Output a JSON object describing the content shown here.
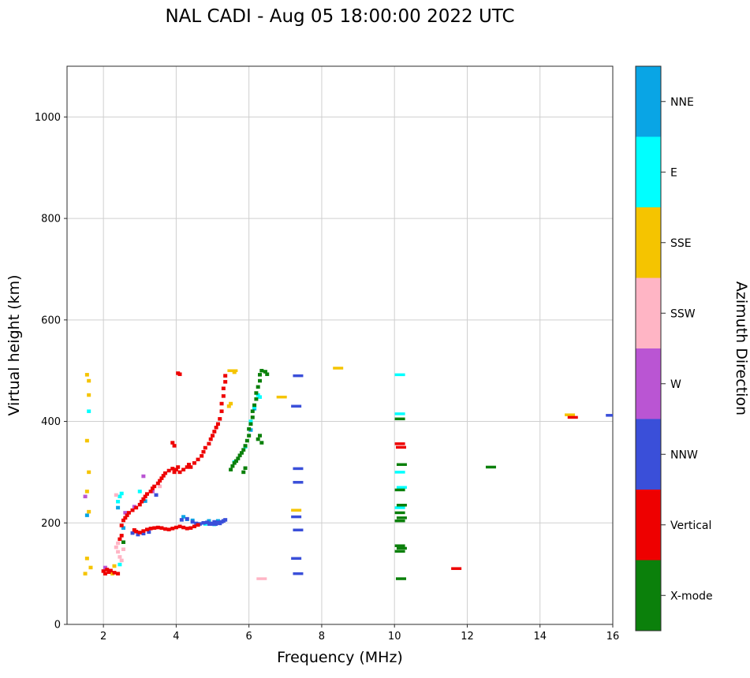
{
  "chart_data": {
    "type": "scatter",
    "title": "NAL CADI - Aug 05 18:00:00 2022 UTC",
    "xlabel": "Frequency (MHz)",
    "ylabel": "Virtual height (km)",
    "xlim": [
      1,
      16
    ],
    "ylim": [
      0,
      1100
    ],
    "xticks": [
      2,
      4,
      6,
      8,
      10,
      12,
      14,
      16
    ],
    "yticks": [
      0,
      200,
      400,
      600,
      800,
      1000
    ],
    "grid": true,
    "legend_position": "right-colorbar",
    "colorbar": {
      "label": "Azimuth Direction",
      "segments": [
        {
          "label": "NNE",
          "color": "#09A5E5"
        },
        {
          "label": "E",
          "color": "#00FFFF"
        },
        {
          "label": "SSE",
          "color": "#F5C400"
        },
        {
          "label": "SSW",
          "color": "#FFB5C5"
        },
        {
          "label": "W",
          "color": "#BA55D3"
        },
        {
          "label": "NNW",
          "color": "#3A4FD9"
        },
        {
          "label": "Vertical",
          "color": "#EE0000"
        },
        {
          "label": "X-mode",
          "color": "#0B800B"
        }
      ]
    },
    "marker_note": "points are [frequency_MHz, virtual_height_km] squares; third element 1 marks a wide horizontal dash",
    "series": [
      {
        "name": "NNE",
        "color": "#09A5E5",
        "points": [
          [
            4.2,
            212
          ],
          [
            4.3,
            207
          ],
          [
            4.45,
            205
          ],
          [
            4.9,
            204
          ],
          [
            5.15,
            204
          ],
          [
            2.55,
            190
          ],
          [
            2.4,
            230
          ],
          [
            3.15,
            243
          ],
          [
            6.05,
            383
          ],
          [
            6.15,
            425
          ],
          [
            1.55,
            215
          ]
        ]
      },
      {
        "name": "E",
        "color": "#00FFFF",
        "points": [
          [
            2.4,
            242
          ],
          [
            2.45,
            252
          ],
          [
            2.5,
            258
          ],
          [
            2.45,
            118
          ],
          [
            1.6,
            420
          ],
          [
            3.0,
            262
          ],
          [
            5.6,
            320
          ],
          [
            5.9,
            350
          ],
          [
            6.05,
            400
          ],
          [
            6.15,
            428
          ],
          [
            6.25,
            452
          ],
          [
            6.3,
            448
          ],
          [
            4.8,
            198
          ],
          [
            5.05,
            197
          ],
          [
            10.15,
            492,
            1
          ],
          [
            10.15,
            415,
            1
          ],
          [
            10.15,
            300,
            1
          ],
          [
            10.2,
            270,
            1
          ],
          [
            10.15,
            230,
            1
          ]
        ]
      },
      {
        "name": "SSE",
        "color": "#F5C400",
        "points": [
          [
            1.55,
            492
          ],
          [
            1.6,
            480
          ],
          [
            1.6,
            452
          ],
          [
            1.55,
            362
          ],
          [
            1.6,
            300
          ],
          [
            1.55,
            262
          ],
          [
            1.6,
            222
          ],
          [
            1.55,
            130
          ],
          [
            1.65,
            112
          ],
          [
            1.5,
            100
          ],
          [
            2.3,
            115
          ],
          [
            2.25,
            100
          ],
          [
            5.55,
            500,
            1
          ],
          [
            5.6,
            497
          ],
          [
            5.5,
            435
          ],
          [
            5.45,
            430
          ],
          [
            6.9,
            448,
            1
          ],
          [
            7.3,
            225,
            1
          ],
          [
            8.45,
            505,
            1
          ],
          [
            14.82,
            413,
            1
          ]
        ]
      },
      {
        "name": "SSW",
        "color": "#FFB5C5",
        "points": [
          [
            2.35,
            152
          ],
          [
            2.4,
            143
          ],
          [
            2.45,
            133
          ],
          [
            2.5,
            126
          ],
          [
            2.4,
            160
          ],
          [
            2.55,
            148
          ],
          [
            2.35,
            255
          ],
          [
            3.55,
            272
          ],
          [
            6.35,
            90,
            1
          ]
        ]
      },
      {
        "name": "W",
        "color": "#BA55D3",
        "points": [
          [
            1.5,
            252
          ],
          [
            2.05,
            112
          ],
          [
            3.1,
            292
          ],
          [
            3.35,
            262
          ],
          [
            2.85,
            232
          ],
          [
            2.6,
            220
          ]
        ]
      },
      {
        "name": "NNW",
        "color": "#3A4FD9",
        "points": [
          [
            2.8,
            180
          ],
          [
            2.95,
            177
          ],
          [
            3.1,
            179
          ],
          [
            3.25,
            182
          ],
          [
            3.45,
            255
          ],
          [
            4.15,
            206
          ],
          [
            4.3,
            208
          ],
          [
            4.45,
            202
          ],
          [
            4.55,
            199
          ],
          [
            4.65,
            198
          ],
          [
            4.75,
            200
          ],
          [
            4.85,
            201
          ],
          [
            4.95,
            199
          ],
          [
            5.0,
            197,
            1
          ],
          [
            5.05,
            202
          ],
          [
            5.1,
            200
          ],
          [
            5.15,
            201
          ],
          [
            5.2,
            199
          ],
          [
            5.25,
            202
          ],
          [
            5.3,
            204
          ],
          [
            5.35,
            206
          ],
          [
            7.35,
            490,
            1
          ],
          [
            7.3,
            430,
            1
          ],
          [
            7.35,
            307,
            1
          ],
          [
            7.35,
            280,
            1
          ],
          [
            7.3,
            212,
            1
          ],
          [
            7.35,
            186,
            1
          ],
          [
            7.3,
            130,
            1
          ],
          [
            7.35,
            100,
            1
          ],
          [
            15.95,
            412,
            1
          ]
        ]
      },
      {
        "name": "Vertical",
        "color": "#EE0000",
        "points": [
          [
            2.0,
            105
          ],
          [
            2.05,
            100
          ],
          [
            2.1,
            108
          ],
          [
            2.15,
            103
          ],
          [
            2.2,
            106
          ],
          [
            2.3,
            102
          ],
          [
            2.4,
            100
          ],
          [
            2.45,
            168
          ],
          [
            2.5,
            175
          ],
          [
            2.5,
            195
          ],
          [
            2.85,
            186
          ],
          [
            2.9,
            183
          ],
          [
            3.0,
            181
          ],
          [
            3.1,
            184
          ],
          [
            3.2,
            187
          ],
          [
            3.3,
            189
          ],
          [
            3.4,
            190
          ],
          [
            3.5,
            191
          ],
          [
            3.6,
            190
          ],
          [
            3.7,
            188
          ],
          [
            3.8,
            187
          ],
          [
            3.9,
            189
          ],
          [
            4.0,
            191
          ],
          [
            4.1,
            193
          ],
          [
            4.2,
            191
          ],
          [
            4.3,
            189
          ],
          [
            4.4,
            190
          ],
          [
            4.5,
            193
          ],
          [
            4.6,
            196
          ],
          [
            2.55,
            205
          ],
          [
            2.6,
            210
          ],
          [
            2.65,
            215
          ],
          [
            2.7,
            220
          ],
          [
            2.8,
            225
          ],
          [
            2.9,
            230
          ],
          [
            3.0,
            236
          ],
          [
            3.05,
            242
          ],
          [
            3.1,
            247
          ],
          [
            3.15,
            252
          ],
          [
            3.2,
            257
          ],
          [
            3.3,
            262
          ],
          [
            3.35,
            268
          ],
          [
            3.4,
            272
          ],
          [
            3.5,
            278
          ],
          [
            3.55,
            283
          ],
          [
            3.6,
            288
          ],
          [
            3.65,
            293
          ],
          [
            3.7,
            298
          ],
          [
            3.8,
            303
          ],
          [
            3.9,
            307
          ],
          [
            3.95,
            300
          ],
          [
            4.0,
            305
          ],
          [
            4.05,
            310
          ],
          [
            4.1,
            300
          ],
          [
            4.2,
            305
          ],
          [
            4.3,
            310
          ],
          [
            4.35,
            315
          ],
          [
            4.4,
            310
          ],
          [
            4.5,
            318
          ],
          [
            4.6,
            325
          ],
          [
            4.7,
            332
          ],
          [
            4.75,
            340
          ],
          [
            4.8,
            348
          ],
          [
            4.9,
            356
          ],
          [
            4.95,
            365
          ],
          [
            5.0,
            372
          ],
          [
            5.05,
            380
          ],
          [
            5.1,
            388
          ],
          [
            5.15,
            395
          ],
          [
            5.2,
            405
          ],
          [
            5.25,
            420
          ],
          [
            5.25,
            435
          ],
          [
            5.3,
            450
          ],
          [
            5.3,
            465
          ],
          [
            5.35,
            478
          ],
          [
            5.35,
            490
          ],
          [
            3.9,
            358
          ],
          [
            3.95,
            352
          ],
          [
            4.05,
            495
          ],
          [
            4.1,
            493
          ],
          [
            10.15,
            356,
            1
          ],
          [
            10.18,
            349,
            1
          ],
          [
            11.7,
            110,
            1
          ],
          [
            14.9,
            408,
            1
          ]
        ]
      },
      {
        "name": "X-mode",
        "color": "#0B800B",
        "points": [
          [
            5.5,
            305
          ],
          [
            5.55,
            312
          ],
          [
            5.6,
            318
          ],
          [
            5.65,
            322
          ],
          [
            5.7,
            327
          ],
          [
            5.75,
            333
          ],
          [
            5.8,
            338
          ],
          [
            5.85,
            344
          ],
          [
            5.9,
            352
          ],
          [
            5.95,
            362
          ],
          [
            6.0,
            372
          ],
          [
            6.0,
            385
          ],
          [
            6.05,
            395
          ],
          [
            6.1,
            408
          ],
          [
            6.1,
            420
          ],
          [
            6.15,
            432
          ],
          [
            6.2,
            444
          ],
          [
            6.2,
            456
          ],
          [
            6.25,
            468
          ],
          [
            6.3,
            480
          ],
          [
            6.3,
            492
          ],
          [
            6.35,
            500
          ],
          [
            6.45,
            498
          ],
          [
            6.5,
            493
          ],
          [
            5.85,
            300
          ],
          [
            5.9,
            308
          ],
          [
            6.25,
            365
          ],
          [
            6.3,
            372
          ],
          [
            6.35,
            358
          ],
          [
            2.55,
            162
          ],
          [
            10.15,
            405,
            1
          ],
          [
            10.2,
            315,
            1
          ],
          [
            10.15,
            265,
            1
          ],
          [
            10.2,
            235,
            1
          ],
          [
            10.15,
            220,
            1
          ],
          [
            10.2,
            210,
            1
          ],
          [
            10.15,
            204,
            1
          ],
          [
            10.15,
            155,
            1
          ],
          [
            10.2,
            150,
            1
          ],
          [
            10.15,
            144,
            1
          ],
          [
            10.18,
            90,
            1
          ],
          [
            12.65,
            310,
            1
          ]
        ]
      }
    ]
  }
}
